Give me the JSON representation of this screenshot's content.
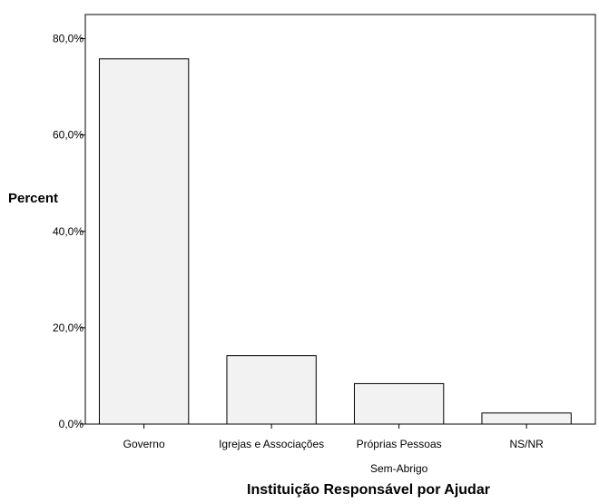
{
  "chart_data": {
    "type": "bar",
    "title": "",
    "xlabel": "Instituição Responsável por Ajudar",
    "ylabel": "Percent",
    "categories": [
      [
        "Governo"
      ],
      [
        "Igrejas e Associações"
      ],
      [
        "Próprias Pessoas",
        "Sem-Abrigo"
      ],
      [
        "NS/NR"
      ]
    ],
    "values": [
      75.8,
      14.2,
      8.4,
      2.3
    ],
    "ylim": [
      0,
      85
    ],
    "yticks": [
      0,
      20,
      40,
      60,
      80
    ],
    "ytick_labels": [
      "0,0%",
      "20,0%",
      "40,0%",
      "60,0%",
      "80,0%"
    ],
    "grid": false,
    "legend": "none",
    "bar_fill": "#f2f2f2",
    "bar_stroke": "#000000"
  }
}
